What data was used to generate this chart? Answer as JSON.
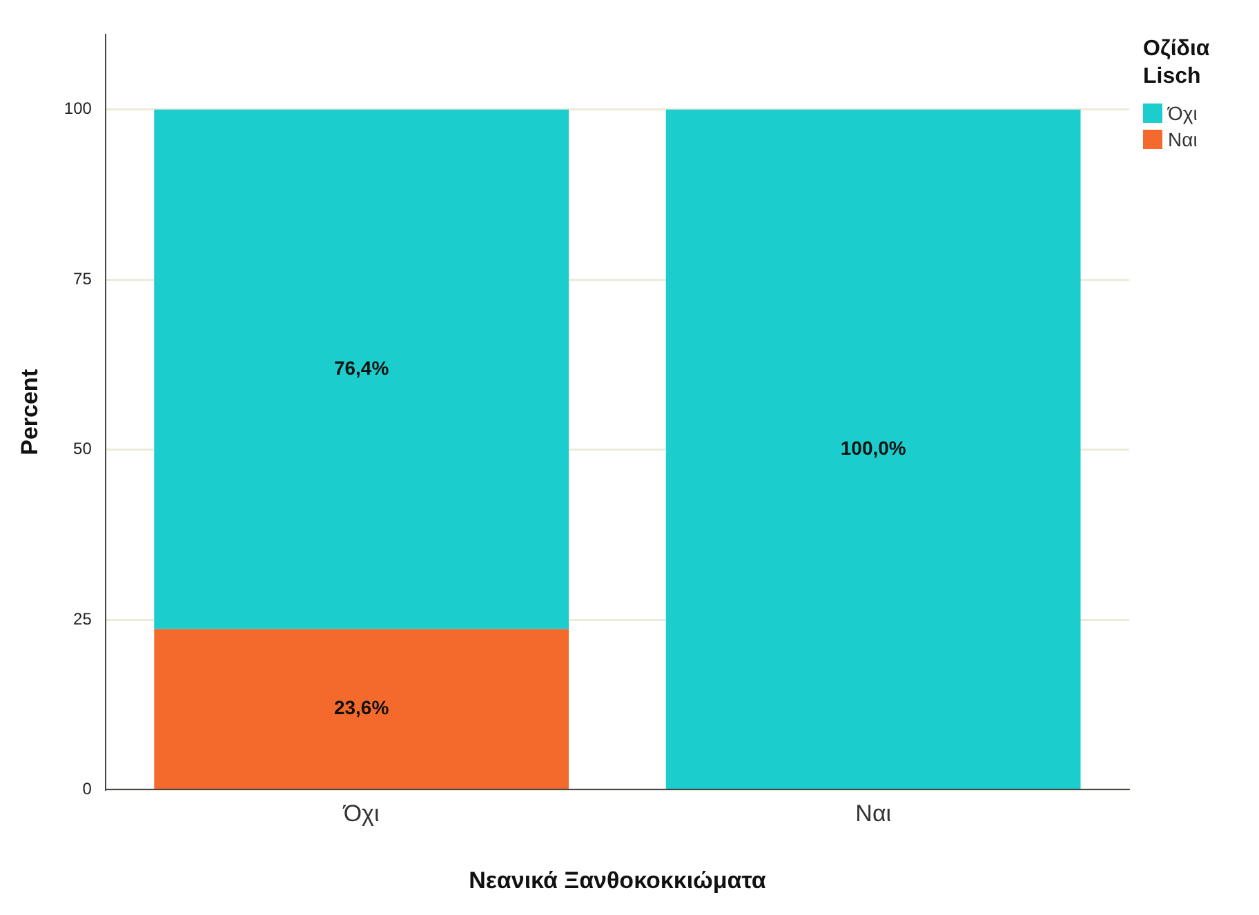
{
  "chart_data": {
    "type": "bar",
    "stacked": true,
    "xlabel": "Νεανικά Ξανθοκοκκιώματα",
    "ylabel": "Percent",
    "legend_title": "Οζίδια Lisch",
    "legend": "top right",
    "grid": "y",
    "categories": [
      "Όχι",
      "Ναι"
    ],
    "series": [
      {
        "name": "Ναι",
        "color": "#f4692c",
        "values": [
          23.6,
          null
        ],
        "value_labels": [
          "23,6%",
          null
        ]
      },
      {
        "name": "Όχι",
        "color": "#1ccdcd",
        "values": [
          76.4,
          100
        ],
        "value_labels": [
          "76,4%",
          "100,0%"
        ]
      }
    ],
    "ylim": [
      0,
      111
    ],
    "yticks": [
      0,
      25,
      50,
      75,
      100
    ]
  }
}
